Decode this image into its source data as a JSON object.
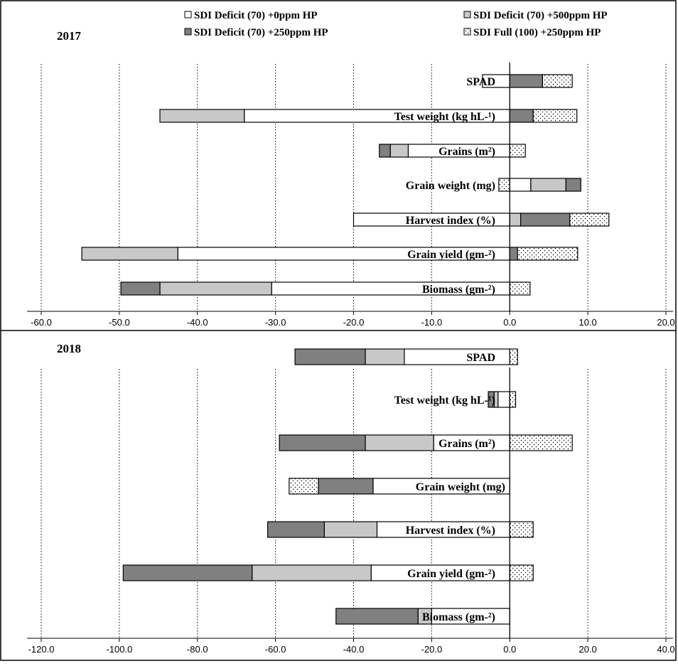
{
  "legend": [
    {
      "label": "SDI Deficit (70) +0ppm HP",
      "fill": "#ffffff"
    },
    {
      "label": "SDI Deficit (70) +500ppm HP",
      "fill": "#c8c8c8"
    },
    {
      "label": "SDI Deficit (70) +250ppm HP",
      "fill": "#808080"
    },
    {
      "label": "SDI Full (100) +250ppm HP",
      "fill": "dots"
    }
  ],
  "colors": {
    "s250": "#808080",
    "s500": "#c8c8c8",
    "s0": "#ffffff",
    "full": "dots",
    "frame": "#000000"
  },
  "chart_data": [
    {
      "type": "bar",
      "orientation": "horizontal-stacked",
      "title": "2017",
      "xlim": [
        -60,
        20
      ],
      "xticks": [
        "-60.0",
        "-50.0",
        "-40.0",
        "-30.0",
        "-20.0",
        "-10.0",
        "0.0",
        "10.0",
        "20.0"
      ],
      "grid": "vertical-dotted",
      "categories": [
        "SPAD",
        "Test weight (kg hL-¹)",
        "Grains (m²)",
        "Grain weight (mg)",
        "Harvest index (%)",
        "Grain yield (gm-²)",
        "Biomass (gm-²)"
      ],
      "series": [
        {
          "name": "SDI Deficit (70) +0ppm HP",
          "values": [
            -3.5,
            -34.0,
            -13.0,
            2.7,
            -20.0,
            -42.5,
            -30.5
          ]
        },
        {
          "name": "SDI Deficit (70) +500ppm HP",
          "values": [
            0.0,
            -10.8,
            -2.3,
            4.5,
            1.4,
            -12.3,
            -14.3
          ]
        },
        {
          "name": "SDI Deficit (70) +250ppm HP",
          "values": [
            4.2,
            3.0,
            -1.4,
            1.9,
            6.3,
            1.0,
            -5.0
          ]
        },
        {
          "name": "SDI Full (100) +250ppm HP",
          "values": [
            3.8,
            5.6,
            2.0,
            -1.4,
            5.0,
            7.7,
            2.6
          ]
        }
      ]
    },
    {
      "type": "bar",
      "orientation": "horizontal-stacked",
      "title": "2018",
      "xlim": [
        -120,
        40
      ],
      "xticks": [
        "-120.0",
        "-100.0",
        "-80.0",
        "-60.0",
        "-40.0",
        "-20.0",
        "0.0",
        "20.0",
        "40.0"
      ],
      "grid": "vertical-dotted",
      "categories": [
        "SPAD",
        "Test weight (kg hL-¹)",
        "Grains (m²)",
        "Grain weight (mg)",
        "Harvest index (%)",
        "Grain yield (gm-²)",
        "Biomass (gm-²)"
      ],
      "series": [
        {
          "name": "SDI Deficit (70) +0ppm HP",
          "values": [
            -27.0,
            -3.0,
            -19.5,
            -35.0,
            -34.0,
            -35.5,
            -20.0
          ]
        },
        {
          "name": "SDI Deficit (70) +500ppm HP",
          "values": [
            -10.0,
            -1.0,
            -17.5,
            0.0,
            -13.5,
            -30.5,
            -3.5
          ]
        },
        {
          "name": "SDI Deficit (70) +250ppm HP",
          "values": [
            -18.0,
            -1.5,
            -22.0,
            -14.0,
            -14.5,
            -33.0,
            -21.0
          ]
        },
        {
          "name": "SDI Full (100) +250ppm HP",
          "values": [
            2.0,
            1.5,
            16.0,
            -7.5,
            6.0,
            6.0,
            0.0
          ]
        }
      ]
    }
  ]
}
